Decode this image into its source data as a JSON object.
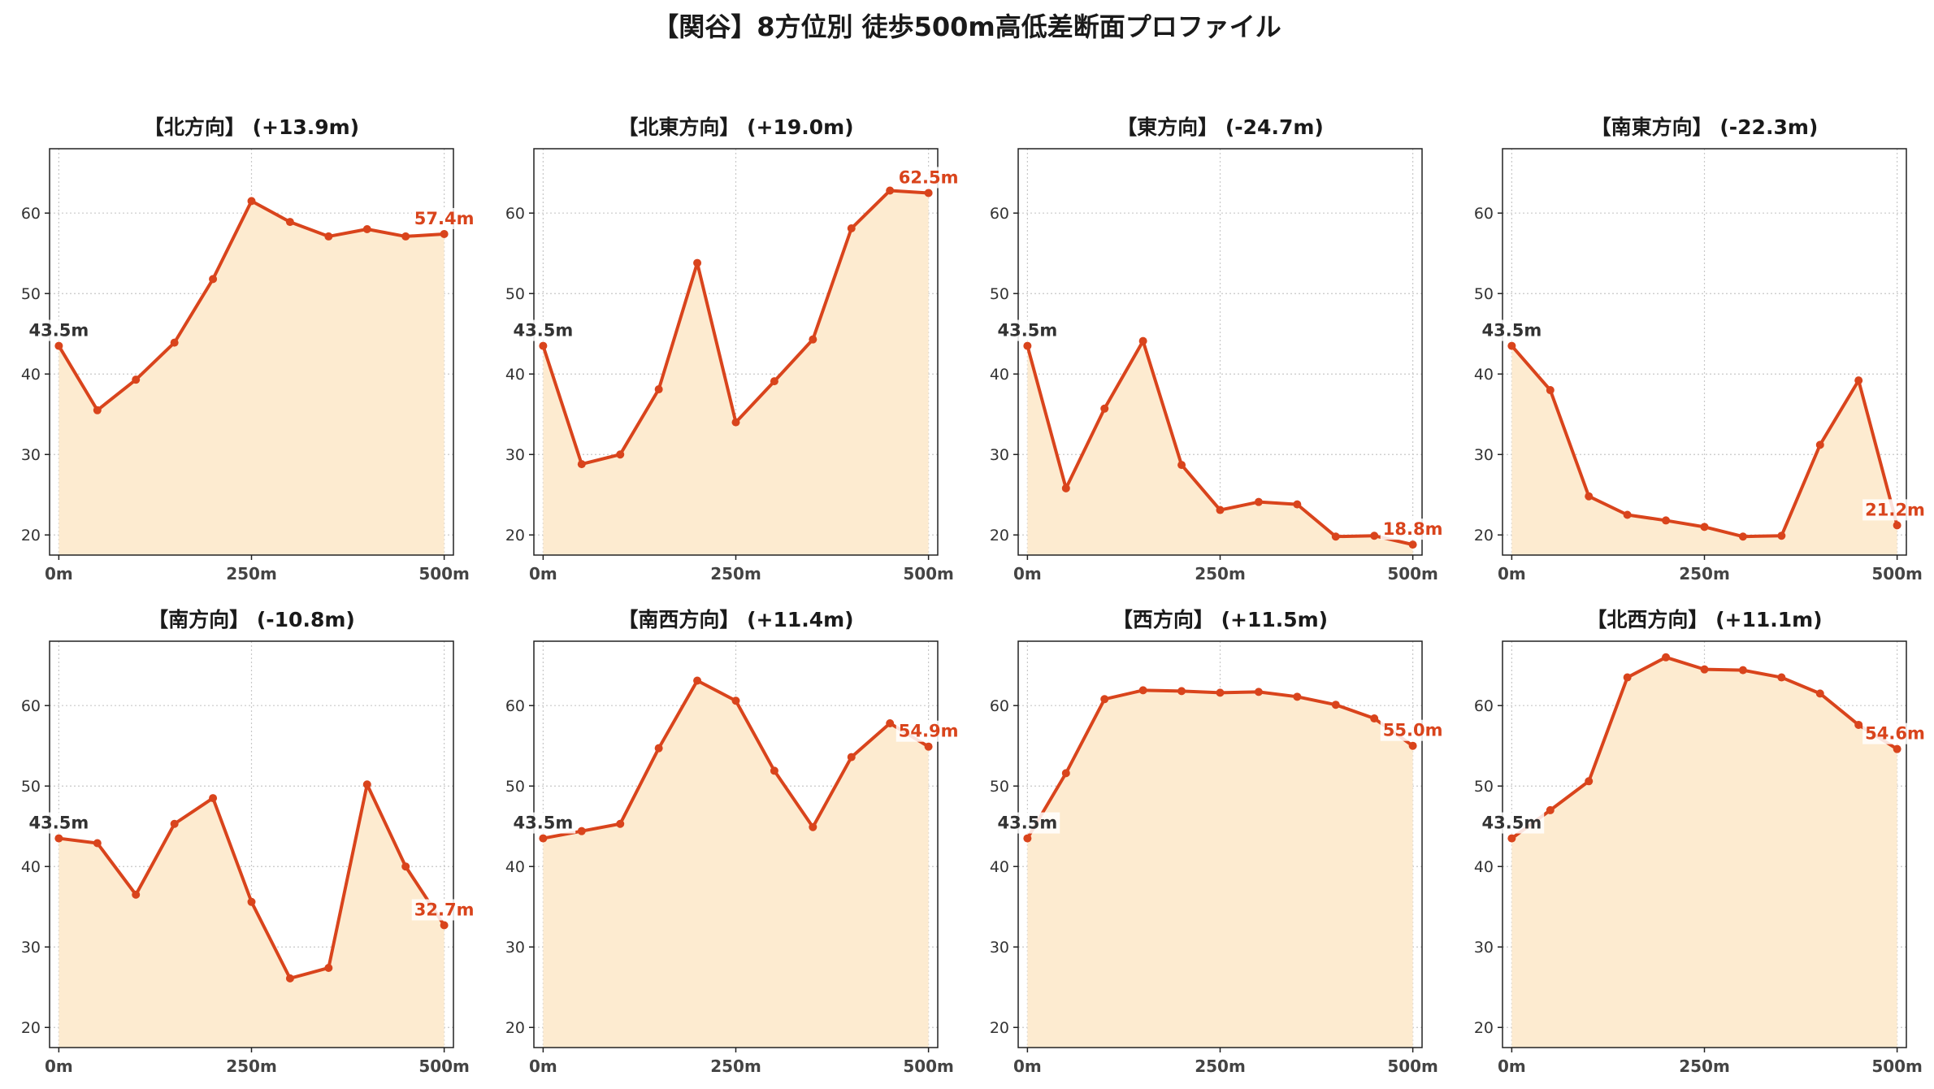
{
  "title": "【関谷】8方位別 徒歩500m高低差断面プロファイル",
  "colors": {
    "line": "#d9441c",
    "fill": "#fdebd0",
    "end_label": "#d9441c",
    "start_label": "#333333"
  },
  "chart_data": [
    {
      "type": "area",
      "title": "【北方向】 (+13.9m)",
      "start_label": "43.5m",
      "end_label": "57.4m",
      "x": [
        0,
        50,
        100,
        150,
        200,
        250,
        300,
        350,
        400,
        450,
        500
      ],
      "values": [
        43.5,
        35.5,
        39.3,
        43.9,
        51.8,
        61.5,
        58.9,
        57.1,
        58.0,
        57.1,
        57.4
      ],
      "xticks": [
        0,
        250,
        500
      ],
      "xtick_labels": [
        "0m",
        "250m",
        "500m"
      ],
      "yticks": [
        20,
        30,
        40,
        50,
        60
      ],
      "ylim": [
        17.5,
        68
      ],
      "xlim": [
        -12,
        512
      ],
      "grid": true
    },
    {
      "type": "area",
      "title": "【北東方向】 (+19.0m)",
      "start_label": "43.5m",
      "end_label": "62.5m",
      "x": [
        0,
        50,
        100,
        150,
        200,
        250,
        300,
        350,
        400,
        450,
        500
      ],
      "values": [
        43.5,
        28.8,
        30.0,
        38.1,
        53.8,
        34.0,
        39.1,
        44.3,
        58.1,
        62.8,
        62.5
      ],
      "xticks": [
        0,
        250,
        500
      ],
      "xtick_labels": [
        "0m",
        "250m",
        "500m"
      ],
      "yticks": [
        20,
        30,
        40,
        50,
        60
      ],
      "ylim": [
        17.5,
        68
      ],
      "xlim": [
        -12,
        512
      ],
      "grid": true
    },
    {
      "type": "area",
      "title": "【東方向】 (-24.7m)",
      "start_label": "43.5m",
      "end_label": "18.8m",
      "x": [
        0,
        50,
        100,
        150,
        200,
        250,
        300,
        350,
        400,
        450,
        500
      ],
      "values": [
        43.5,
        25.8,
        35.7,
        44.1,
        28.7,
        23.1,
        24.1,
        23.8,
        19.8,
        19.9,
        18.8
      ],
      "xticks": [
        0,
        250,
        500
      ],
      "xtick_labels": [
        "0m",
        "250m",
        "500m"
      ],
      "yticks": [
        20,
        30,
        40,
        50,
        60
      ],
      "ylim": [
        17.5,
        68
      ],
      "xlim": [
        -12,
        512
      ],
      "grid": true
    },
    {
      "type": "area",
      "title": "【南東方向】 (-22.3m)",
      "start_label": "43.5m",
      "end_label": "21.2m",
      "x": [
        0,
        50,
        100,
        150,
        200,
        250,
        300,
        350,
        400,
        450,
        500
      ],
      "values": [
        43.5,
        38.0,
        24.8,
        22.5,
        21.8,
        21.0,
        19.8,
        19.9,
        31.2,
        39.2,
        21.2
      ],
      "xticks": [
        0,
        250,
        500
      ],
      "xtick_labels": [
        "0m",
        "250m",
        "500m"
      ],
      "yticks": [
        20,
        30,
        40,
        50,
        60
      ],
      "ylim": [
        17.5,
        68
      ],
      "xlim": [
        -12,
        512
      ],
      "grid": true
    },
    {
      "type": "area",
      "title": "【南方向】 (-10.8m)",
      "start_label": "43.5m",
      "end_label": "32.7m",
      "x": [
        0,
        50,
        100,
        150,
        200,
        250,
        300,
        350,
        400,
        450,
        500
      ],
      "values": [
        43.5,
        42.9,
        36.5,
        45.3,
        48.5,
        35.6,
        26.1,
        27.4,
        50.2,
        40.0,
        32.7
      ],
      "xticks": [
        0,
        250,
        500
      ],
      "xtick_labels": [
        "0m",
        "250m",
        "500m"
      ],
      "yticks": [
        20,
        30,
        40,
        50,
        60
      ],
      "ylim": [
        17.5,
        68
      ],
      "xlim": [
        -12,
        512
      ],
      "grid": true
    },
    {
      "type": "area",
      "title": "【南西方向】 (+11.4m)",
      "start_label": "43.5m",
      "end_label": "54.9m",
      "x": [
        0,
        50,
        100,
        150,
        200,
        250,
        300,
        350,
        400,
        450,
        500
      ],
      "values": [
        43.5,
        44.4,
        45.3,
        54.7,
        63.1,
        60.6,
        51.9,
        44.9,
        53.6,
        57.8,
        54.9
      ],
      "xticks": [
        0,
        250,
        500
      ],
      "xtick_labels": [
        "0m",
        "250m",
        "500m"
      ],
      "yticks": [
        20,
        30,
        40,
        50,
        60
      ],
      "ylim": [
        17.5,
        68
      ],
      "xlim": [
        -12,
        512
      ],
      "grid": true
    },
    {
      "type": "area",
      "title": "【西方向】 (+11.5m)",
      "start_label": "43.5m",
      "end_label": "55.0m",
      "x": [
        0,
        50,
        100,
        150,
        200,
        250,
        300,
        350,
        400,
        450,
        500
      ],
      "values": [
        43.5,
        51.6,
        60.8,
        61.9,
        61.8,
        61.6,
        61.7,
        61.1,
        60.1,
        58.4,
        55.0
      ],
      "xticks": [
        0,
        250,
        500
      ],
      "xtick_labels": [
        "0m",
        "250m",
        "500m"
      ],
      "yticks": [
        20,
        30,
        40,
        50,
        60
      ],
      "ylim": [
        17.5,
        68
      ],
      "xlim": [
        -12,
        512
      ],
      "grid": true
    },
    {
      "type": "area",
      "title": "【北西方向】 (+11.1m)",
      "start_label": "43.5m",
      "end_label": "54.6m",
      "x": [
        0,
        50,
        100,
        150,
        200,
        250,
        300,
        350,
        400,
        450,
        500
      ],
      "values": [
        43.5,
        47.0,
        50.6,
        63.5,
        66.0,
        64.5,
        64.4,
        63.5,
        61.5,
        57.6,
        54.6
      ],
      "xticks": [
        0,
        250,
        500
      ],
      "xtick_labels": [
        "0m",
        "250m",
        "500m"
      ],
      "yticks": [
        20,
        30,
        40,
        50,
        60
      ],
      "ylim": [
        17.5,
        68
      ],
      "xlim": [
        -12,
        512
      ],
      "grid": true
    }
  ]
}
